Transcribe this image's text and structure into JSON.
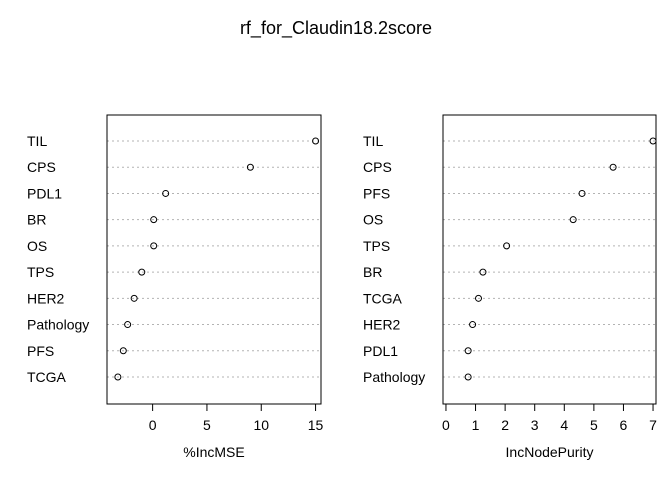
{
  "title": "rf_for_Claudin18.2score",
  "chart_data": [
    {
      "type": "scatter",
      "subtype": "dotchart",
      "xlabel": "%IncMSE",
      "xlim": [
        -4.2,
        15.5
      ],
      "xticks": [
        0,
        5,
        10,
        15
      ],
      "categories": [
        "TIL",
        "CPS",
        "PDL1",
        "BR",
        "OS",
        "TPS",
        "HER2",
        "Pathology",
        "PFS",
        "TCGA"
      ],
      "values": [
        15.0,
        9.0,
        1.2,
        0.1,
        0.1,
        -1.0,
        -1.7,
        -2.3,
        -2.7,
        -3.2
      ],
      "grid": "dotted horizontal",
      "marker": "open circle"
    },
    {
      "type": "scatter",
      "subtype": "dotchart",
      "xlabel": "IncNodePurity",
      "xlim": [
        -0.1,
        7.1
      ],
      "xticks": [
        0,
        1,
        2,
        3,
        4,
        5,
        6,
        7
      ],
      "categories": [
        "TIL",
        "CPS",
        "PFS",
        "OS",
        "TPS",
        "BR",
        "TCGA",
        "HER2",
        "PDL1",
        "Pathology"
      ],
      "values": [
        7.0,
        5.65,
        4.6,
        4.3,
        2.05,
        1.25,
        1.1,
        0.9,
        0.75,
        0.75
      ],
      "grid": "dotted horizontal",
      "marker": "open circle"
    }
  ]
}
